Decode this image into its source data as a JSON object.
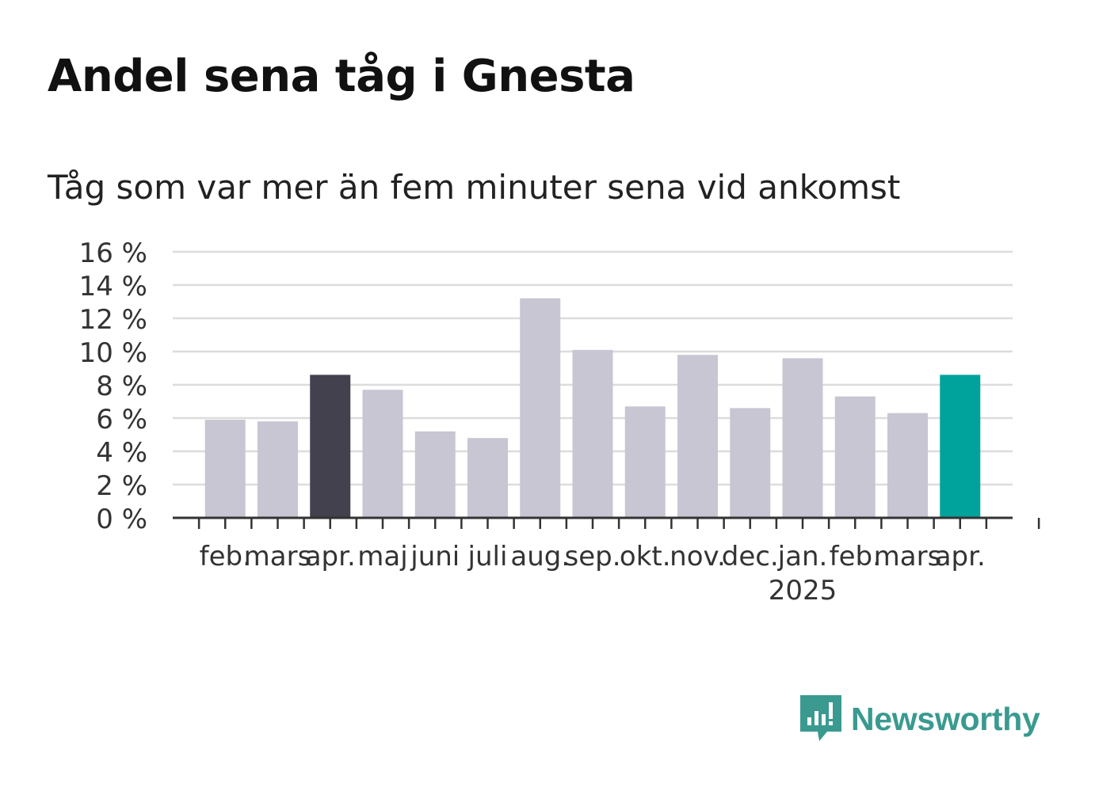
{
  "header": {
    "title": "Andel sena tåg i Gnesta",
    "subtitle": "Tåg som var mer än fem minuter sena vid ankomst"
  },
  "brand": {
    "name": "Newsworthy",
    "color": "#3a9a90"
  },
  "colors": {
    "default_bar": "#c8c6d2",
    "dark_bar": "#43414d",
    "highlight_bar": "#00a39b",
    "grid": "#dcdcdc",
    "axis": "#333333"
  },
  "chart_data": {
    "type": "bar",
    "categories": [
      "feb.",
      "mars",
      "apr.",
      "maj",
      "juni",
      "juli",
      "aug.",
      "sep.",
      "okt.",
      "nov.",
      "dec.",
      "jan.",
      "feb.",
      "mars",
      "apr."
    ],
    "year_labels": [
      {
        "index": 11,
        "label": "2025"
      }
    ],
    "values": [
      5.9,
      5.8,
      8.6,
      7.7,
      5.2,
      4.8,
      13.2,
      10.1,
      6.7,
      9.8,
      6.6,
      9.6,
      7.3,
      6.3,
      8.6
    ],
    "bar_colors": [
      "default",
      "default",
      "dark",
      "default",
      "default",
      "default",
      "default",
      "default",
      "default",
      "default",
      "default",
      "default",
      "default",
      "default",
      "highlight"
    ],
    "yticks": [
      "0 %",
      "2 %",
      "4 %",
      "6 %",
      "8 %",
      "10 %",
      "12 %",
      "14 %",
      "16 %"
    ],
    "ylim": [
      0,
      16
    ],
    "grid": true,
    "title": "Andel sena tåg i Gnesta",
    "subtitle": "Tåg som var mer än fem minuter sena vid ankomst"
  }
}
